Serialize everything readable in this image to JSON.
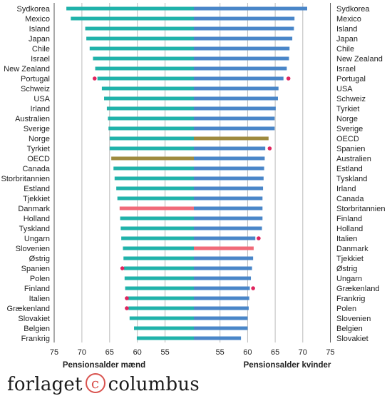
{
  "chart_data": [
    {
      "type": "bar",
      "orientation": "horizontal",
      "side": "left",
      "xlabel": "Pensionsalder mænd",
      "xlim": [
        75,
        50
      ],
      "ticks": [
        75,
        70,
        65,
        60,
        55
      ],
      "colors": {
        "default": "#20b2aa",
        "highlight_oecd": "#9e8a3e",
        "highlight_dk": "#f06a78",
        "marker": "#e0245e"
      },
      "categories": [
        "Sydkorea",
        "Mexico",
        "Island",
        "Japan",
        "Chile",
        "Israel",
        "New Zealand",
        "Portugal",
        "Schweiz",
        "USA",
        "Irland",
        "Australien",
        "Sverige",
        "Norge",
        "Tyrkiet",
        "OECD",
        "Canada",
        "Storbritannien",
        "Estland",
        "Tjekkiet",
        "Danmark",
        "Holland",
        "Tyskland",
        "Ungarn",
        "Slovenien",
        "Østrig",
        "Spanien",
        "Polen",
        "Finland",
        "Italien",
        "Grækenland",
        "Slovakiet",
        "Belgien",
        "Frankrig"
      ],
      "values": [
        72.8,
        72.0,
        69.4,
        69.2,
        68.6,
        68.0,
        67.6,
        67.2,
        66.4,
        66.0,
        65.5,
        65.3,
        65.2,
        65.0,
        65.0,
        64.7,
        64.3,
        64.1,
        63.8,
        63.6,
        63.2,
        63.1,
        63.0,
        62.9,
        62.6,
        62.5,
        62.4,
        62.3,
        62.2,
        61.7,
        61.6,
        61.4,
        60.6,
        60.1
      ],
      "markers": [
        {
          "category": "Portugal",
          "value": 67.7
        },
        {
          "category": "Spanien",
          "value": 62.7
        },
        {
          "category": "Italien",
          "value": 61.9
        },
        {
          "category": "Grækenland",
          "value": 61.9
        }
      ]
    },
    {
      "type": "bar",
      "orientation": "horizontal",
      "side": "right",
      "xlabel": "Pensionsalder kvinder",
      "xlim": [
        50,
        75
      ],
      "ticks": [
        55,
        60,
        65,
        70,
        75
      ],
      "colors": {
        "default": "#4a86c8",
        "highlight_oecd": "#9e8a3e",
        "highlight_dk": "#f06a78",
        "marker": "#e0245e"
      },
      "categories": [
        "Sydkorea",
        "Mexico",
        "Island",
        "Japan",
        "Chile",
        "New Zealand",
        "Israel",
        "Portugal",
        "USA",
        "Schweiz",
        "Tyrkiet",
        "Norge",
        "Sverige",
        "OECD",
        "Spanien",
        "Australien",
        "Estland",
        "Tyskland",
        "Irland",
        "Canada",
        "Storbritannien",
        "Finland",
        "Holland",
        "Italien",
        "Danmark",
        "Tjekkiet",
        "Østrig",
        "Ungarn",
        "Grækenland",
        "Frankrig",
        "Polen",
        "Slovenien",
        "Belgien",
        "Slovakiet"
      ],
      "values": [
        70.8,
        68.5,
        68.4,
        68.1,
        67.6,
        67.5,
        67.1,
        66.5,
        65.6,
        65.5,
        65.1,
        64.9,
        64.9,
        63.8,
        63.2,
        63.1,
        63.0,
        62.9,
        62.8,
        62.7,
        62.7,
        62.7,
        62.6,
        61.4,
        61.1,
        61.0,
        60.8,
        60.6,
        60.4,
        60.3,
        60.2,
        60.0,
        60.0,
        58.8
      ],
      "markers": [
        {
          "category": "Portugal",
          "value": 67.4
        },
        {
          "category": "Spanien",
          "value": 64.0
        },
        {
          "category": "Italien",
          "value": 62.0
        },
        {
          "category": "Grækenland",
          "value": 61.0
        }
      ]
    }
  ],
  "brand": {
    "text_before": "forlaget",
    "symbol": "c",
    "text_after": "columbus"
  }
}
